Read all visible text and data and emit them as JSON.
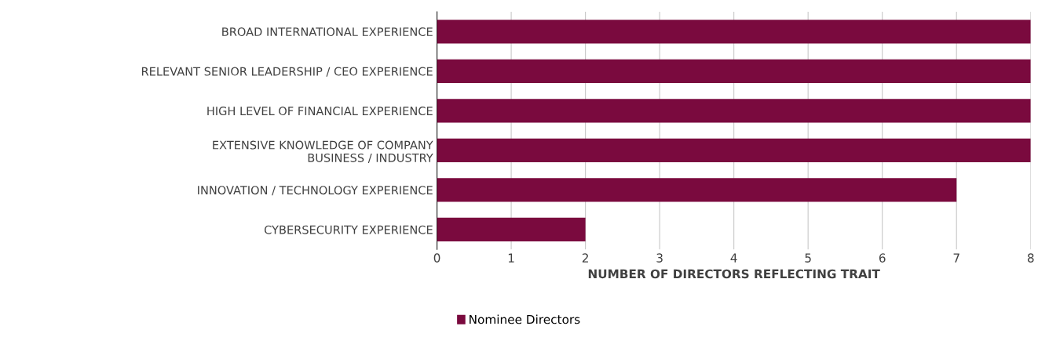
{
  "chart_data": {
    "type": "bar",
    "orientation": "horizontal",
    "categories": [
      "BROAD INTERNATIONAL EXPERIENCE",
      "RELEVANT SENIOR LEADERSHIP / CEO EXPERIENCE",
      "HIGH LEVEL OF FINANCIAL EXPERIENCE",
      "EXTENSIVE KNOWLEDGE OF COMPANY\nBUSINESS / INDUSTRY",
      "INNOVATION / TECHNOLOGY EXPERIENCE",
      "CYBERSECURITY EXPERIENCE"
    ],
    "series": [
      {
        "name": "Nominee Directors",
        "color": "#7a0a3e",
        "values": [
          8,
          8,
          8,
          8,
          7,
          2
        ]
      }
    ],
    "xlabel": "NUMBER OF DIRECTORS REFLECTING TRAIT",
    "xlim": [
      0,
      8
    ],
    "xticks": [
      0,
      1,
      2,
      3,
      4,
      5,
      6,
      7,
      8
    ],
    "grid": "x",
    "legend": "bottom"
  }
}
